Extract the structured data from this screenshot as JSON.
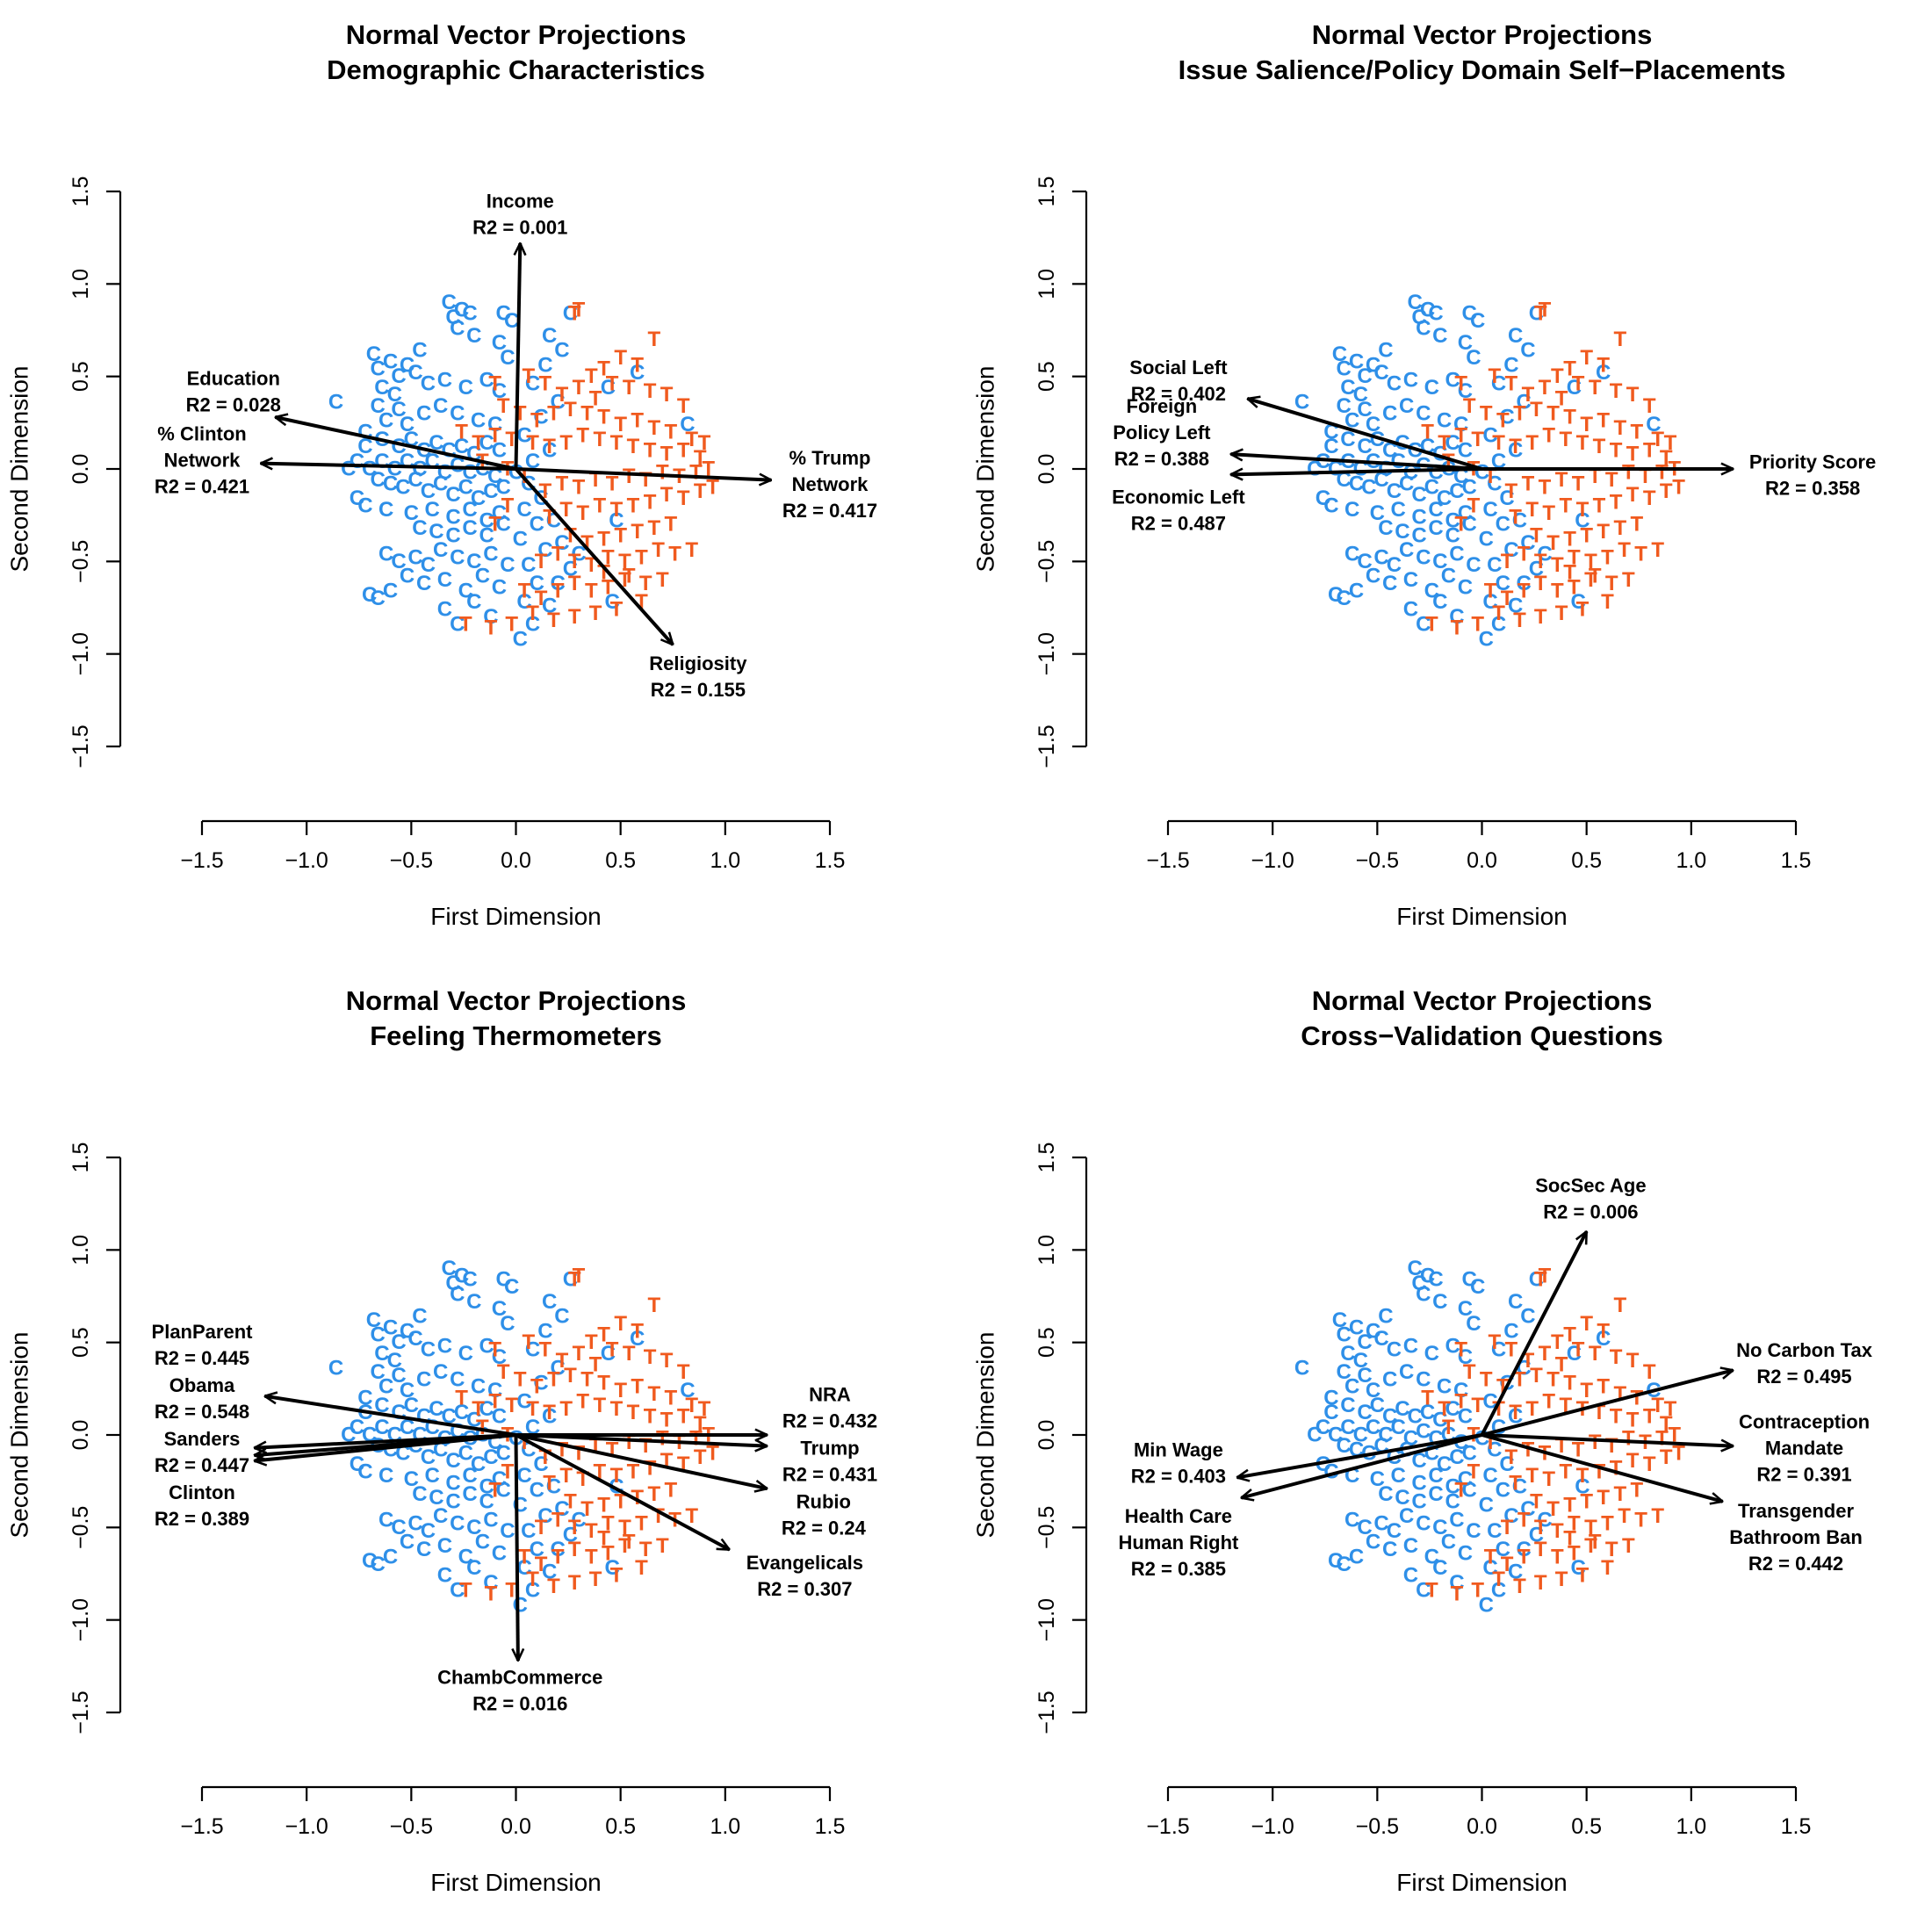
{
  "colors": {
    "clinton": "#2e8fe8",
    "trump": "#f05a1e",
    "arrow": "#000000"
  },
  "chart_data": [
    {
      "type": "scatter",
      "title": "Normal Vector Projections",
      "subtitle": "Demographic Characteristics",
      "xlabel": "First Dimension",
      "ylabel": "Second Dimension",
      "xlim": [
        -1.5,
        1.5
      ],
      "ylim": [
        -1.5,
        1.5
      ],
      "ticks": [
        "−1.5",
        "−1.0",
        "−0.5",
        "0.0",
        "0.5",
        "1.0",
        "1.5"
      ],
      "vectors": [
        {
          "label": [
            "Income",
            "R2 = 0.001"
          ],
          "x": 0.02,
          "y": 1.22,
          "lx": 0.02,
          "ly": 1.38
        },
        {
          "label": [
            "Education",
            "R2 = 0.028"
          ],
          "x": -1.15,
          "y": 0.28,
          "lx": -1.35,
          "ly": 0.42
        },
        {
          "label": [
            "% Clinton",
            "Network",
            "R2 = 0.421"
          ],
          "x": -1.22,
          "y": 0.03,
          "lx": -1.5,
          "ly": 0.05
        },
        {
          "label": [
            "% Trump",
            "Network",
            "R2 = 0.417"
          ],
          "x": 1.22,
          "y": -0.06,
          "lx": 1.5,
          "ly": -0.08
        },
        {
          "label": [
            "Religiosity",
            "R2 = 0.155"
          ],
          "x": 0.75,
          "y": -0.95,
          "lx": 0.87,
          "ly": -1.12
        }
      ]
    },
    {
      "type": "scatter",
      "title": "Normal Vector Projections",
      "subtitle": "Issue Salience/Policy Domain Self−Placements",
      "xlabel": "First Dimension",
      "ylabel": "Second Dimension",
      "xlim": [
        -1.5,
        1.5
      ],
      "ylim": [
        -1.5,
        1.5
      ],
      "ticks": [
        "−1.5",
        "−1.0",
        "−0.5",
        "0.0",
        "0.5",
        "1.0",
        "1.5"
      ],
      "vectors": [
        {
          "label": [
            "Social Left",
            "R2 = 0.402"
          ],
          "x": -1.12,
          "y": 0.38,
          "lx": -1.45,
          "ly": 0.48
        },
        {
          "label": [
            "Foreign",
            "Policy Left",
            "R2 = 0.388"
          ],
          "x": -1.2,
          "y": 0.08,
          "lx": -1.53,
          "ly": 0.2
        },
        {
          "label": [
            "Economic Left",
            "R2 = 0.487"
          ],
          "x": -1.2,
          "y": -0.03,
          "lx": -1.45,
          "ly": -0.22
        },
        {
          "label": [
            "Priority Score",
            "R2 = 0.358"
          ],
          "x": 1.2,
          "y": 0.0,
          "lx": 1.58,
          "ly": -0.03
        }
      ]
    },
    {
      "type": "scatter",
      "title": "Normal Vector Projections",
      "subtitle": "Feeling Thermometers",
      "xlabel": "First Dimension",
      "ylabel": "Second Dimension",
      "xlim": [
        -1.5,
        1.5
      ],
      "ylim": [
        -1.5,
        1.5
      ],
      "ticks": [
        "−1.5",
        "−1.0",
        "−0.5",
        "0.0",
        "0.5",
        "1.0",
        "1.5"
      ],
      "vectors": [
        {
          "label": [
            "PlanParent",
            "R2 = 0.445"
          ],
          "x": -1.2,
          "y": 0.21,
          "lx": -1.5,
          "ly": 0.49
        },
        {
          "label": [
            "Obama",
            "R2 = 0.548"
          ],
          "x": -1.25,
          "y": -0.07,
          "lx": -1.5,
          "ly": 0.2
        },
        {
          "label": [
            "Sanders",
            "R2 = 0.447"
          ],
          "x": -1.25,
          "y": -0.11,
          "lx": -1.5,
          "ly": -0.09
        },
        {
          "label": [
            "Clinton",
            "R2 = 0.389"
          ],
          "x": -1.25,
          "y": -0.14,
          "lx": -1.5,
          "ly": -0.38
        },
        {
          "label": [
            "NRA",
            "R2 = 0.432"
          ],
          "x": 1.2,
          "y": 0.0,
          "lx": 1.5,
          "ly": 0.15
        },
        {
          "label": [
            "Trump",
            "R2 = 0.431"
          ],
          "x": 1.2,
          "y": -0.06,
          "lx": 1.5,
          "ly": -0.14
        },
        {
          "label": [
            "Rubio",
            "R2 = 0.24"
          ],
          "x": 1.2,
          "y": -0.29,
          "lx": 1.47,
          "ly": -0.43
        },
        {
          "label": [
            "Evangelicals",
            "R2 = 0.307"
          ],
          "x": 1.02,
          "y": -0.62,
          "lx": 1.38,
          "ly": -0.76
        },
        {
          "label": [
            "ChambCommerce",
            "R2 = 0.016"
          ],
          "x": 0.01,
          "y": -1.22,
          "lx": 0.02,
          "ly": -1.38
        }
      ]
    },
    {
      "type": "scatter",
      "title": "Normal Vector Projections",
      "subtitle": "Cross−Validation Questions",
      "xlabel": "First Dimension",
      "ylabel": "Second Dimension",
      "xlim": [
        -1.5,
        1.5
      ],
      "ylim": [
        -1.5,
        1.5
      ],
      "ticks": [
        "−1.5",
        "−1.0",
        "−0.5",
        "0.0",
        "0.5",
        "1.0",
        "1.5"
      ],
      "vectors": [
        {
          "label": [
            "SocSec Age",
            "R2 = 0.006"
          ],
          "x": 0.5,
          "y": 1.1,
          "lx": 0.52,
          "ly": 1.28
        },
        {
          "label": [
            "No Carbon Tax",
            "R2 = 0.495"
          ],
          "x": 1.2,
          "y": 0.35,
          "lx": 1.54,
          "ly": 0.39
        },
        {
          "label": [
            "Contraception",
            "Mandate",
            "R2 = 0.391"
          ],
          "x": 1.2,
          "y": -0.06,
          "lx": 1.54,
          "ly": -0.07
        },
        {
          "label": [
            "Transgender",
            "Bathroom Ban",
            "R2 = 0.442"
          ],
          "x": 1.15,
          "y": -0.36,
          "lx": 1.5,
          "ly": -0.55
        },
        {
          "label": [
            "Min Wage",
            "R2 = 0.403"
          ],
          "x": -1.17,
          "y": -0.23,
          "lx": -1.45,
          "ly": -0.15
        },
        {
          "label": [
            "Health Care",
            "Human Right",
            "R2 = 0.385"
          ],
          "x": -1.15,
          "y": -0.34,
          "lx": -1.45,
          "ly": -0.58
        }
      ]
    }
  ],
  "points": {
    "C": [
      [
        -0.32,
        0.9
      ],
      [
        -0.26,
        0.86
      ],
      [
        -0.3,
        0.82
      ],
      [
        -0.22,
        0.84
      ],
      [
        -0.28,
        0.76
      ],
      [
        -0.2,
        0.72
      ],
      [
        -0.06,
        0.84
      ],
      [
        -0.02,
        0.8
      ],
      [
        -0.08,
        0.68
      ],
      [
        -0.04,
        0.6
      ],
      [
        -0.68,
        0.62
      ],
      [
        -0.6,
        0.58
      ],
      [
        -0.46,
        0.64
      ],
      [
        -0.52,
        0.56
      ],
      [
        -0.66,
        0.54
      ],
      [
        -0.56,
        0.5
      ],
      [
        -0.48,
        0.52
      ],
      [
        -0.64,
        0.44
      ],
      [
        -0.58,
        0.4
      ],
      [
        -0.42,
        0.46
      ],
      [
        -0.34,
        0.48
      ],
      [
        -0.24,
        0.44
      ],
      [
        -0.14,
        0.48
      ],
      [
        -0.08,
        0.42
      ],
      [
        -0.86,
        0.36
      ],
      [
        -0.66,
        0.34
      ],
      [
        -0.56,
        0.32
      ],
      [
        -0.62,
        0.26
      ],
      [
        -0.52,
        0.24
      ],
      [
        -0.44,
        0.3
      ],
      [
        -0.36,
        0.34
      ],
      [
        -0.28,
        0.3
      ],
      [
        -0.18,
        0.26
      ],
      [
        -0.1,
        0.24
      ],
      [
        -0.72,
        0.2
      ],
      [
        -0.64,
        0.16
      ],
      [
        -0.56,
        0.12
      ],
      [
        -0.5,
        0.16
      ],
      [
        -0.44,
        0.1
      ],
      [
        -0.38,
        0.14
      ],
      [
        -0.32,
        0.1
      ],
      [
        -0.26,
        0.12
      ],
      [
        -0.2,
        0.08
      ],
      [
        -0.14,
        0.14
      ],
      [
        -0.08,
        0.1
      ],
      [
        -0.76,
        0.04
      ],
      [
        -0.7,
        0.0
      ],
      [
        -0.64,
        0.04
      ],
      [
        -0.58,
        0.0
      ],
      [
        -0.52,
        0.04
      ],
      [
        -0.46,
        0.0
      ],
      [
        -0.4,
        0.04
      ],
      [
        -0.34,
        -0.02
      ],
      [
        -0.28,
        0.02
      ],
      [
        -0.22,
        -0.02
      ],
      [
        -0.16,
        0.0
      ],
      [
        -0.1,
        -0.04
      ],
      [
        -0.8,
        0.0
      ],
      [
        -0.66,
        -0.06
      ],
      [
        -0.6,
        -0.08
      ],
      [
        -0.54,
        -0.1
      ],
      [
        -0.48,
        -0.06
      ],
      [
        -0.42,
        -0.12
      ],
      [
        -0.36,
        -0.08
      ],
      [
        -0.3,
        -0.14
      ],
      [
        -0.24,
        -0.1
      ],
      [
        -0.18,
        -0.16
      ],
      [
        -0.12,
        -0.12
      ],
      [
        -0.06,
        -0.1
      ],
      [
        -0.72,
        -0.2
      ],
      [
        -0.62,
        -0.22
      ],
      [
        -0.5,
        -0.24
      ],
      [
        -0.4,
        -0.22
      ],
      [
        -0.3,
        -0.26
      ],
      [
        -0.22,
        -0.22
      ],
      [
        -0.14,
        -0.28
      ],
      [
        -0.08,
        -0.24
      ],
      [
        -0.46,
        -0.32
      ],
      [
        -0.38,
        -0.34
      ],
      [
        -0.3,
        -0.36
      ],
      [
        -0.22,
        -0.32
      ],
      [
        -0.14,
        -0.36
      ],
      [
        -0.06,
        -0.3
      ],
      [
        -0.62,
        -0.46
      ],
      [
        -0.56,
        -0.5
      ],
      [
        -0.48,
        -0.48
      ],
      [
        -0.42,
        -0.52
      ],
      [
        -0.36,
        -0.44
      ],
      [
        -0.28,
        -0.48
      ],
      [
        -0.2,
        -0.5
      ],
      [
        -0.12,
        -0.46
      ],
      [
        -0.04,
        -0.52
      ],
      [
        -0.66,
        -0.7
      ],
      [
        -0.6,
        -0.66
      ],
      [
        -0.52,
        -0.58
      ],
      [
        -0.44,
        -0.62
      ],
      [
        -0.34,
        -0.6
      ],
      [
        -0.24,
        -0.66
      ],
      [
        -0.16,
        -0.58
      ],
      [
        -0.08,
        -0.64
      ],
      [
        -0.34,
        -0.76
      ],
      [
        -0.28,
        -0.84
      ],
      [
        -0.2,
        -0.72
      ],
      [
        -0.12,
        -0.8
      ],
      [
        0.04,
        -0.72
      ],
      [
        0.08,
        -0.84
      ],
      [
        0.02,
        -0.92
      ],
      [
        0.16,
        -0.74
      ],
      [
        0.1,
        -0.62
      ],
      [
        0.2,
        -0.62
      ],
      [
        0.26,
        -0.54
      ],
      [
        0.06,
        -0.52
      ],
      [
        0.14,
        -0.44
      ],
      [
        0.22,
        -0.4
      ],
      [
        0.3,
        -0.46
      ],
      [
        0.02,
        -0.38
      ],
      [
        0.1,
        -0.3
      ],
      [
        0.18,
        -0.28
      ],
      [
        0.04,
        -0.22
      ],
      [
        0.12,
        -0.16
      ],
      [
        0.06,
        -0.08
      ],
      [
        0.0,
        -0.02
      ],
      [
        0.08,
        0.04
      ],
      [
        0.16,
        0.1
      ],
      [
        0.04,
        0.18
      ],
      [
        0.12,
        0.28
      ],
      [
        0.2,
        0.36
      ],
      [
        0.08,
        0.46
      ],
      [
        0.14,
        0.56
      ],
      [
        0.22,
        0.64
      ],
      [
        0.16,
        0.72
      ],
      [
        0.26,
        0.84
      ],
      [
        0.48,
        -0.28
      ],
      [
        0.46,
        -0.72
      ],
      [
        0.82,
        0.24
      ],
      [
        0.58,
        0.52
      ],
      [
        0.44,
        0.44
      ],
      [
        -0.72,
        0.12
      ],
      [
        -0.7,
        -0.68
      ],
      [
        -0.76,
        -0.16
      ]
    ],
    "T": [
      [
        0.28,
        0.84
      ],
      [
        0.3,
        0.86
      ],
      [
        0.66,
        0.7
      ],
      [
        0.5,
        0.6
      ],
      [
        0.58,
        0.56
      ],
      [
        0.42,
        0.54
      ],
      [
        0.36,
        0.5
      ],
      [
        0.46,
        0.46
      ],
      [
        0.54,
        0.44
      ],
      [
        0.64,
        0.42
      ],
      [
        0.72,
        0.4
      ],
      [
        0.8,
        0.34
      ],
      [
        0.3,
        0.44
      ],
      [
        0.38,
        0.38
      ],
      [
        0.22,
        0.4
      ],
      [
        0.14,
        0.46
      ],
      [
        0.06,
        0.5
      ],
      [
        -0.1,
        0.46
      ],
      [
        -0.06,
        0.34
      ],
      [
        0.02,
        0.3
      ],
      [
        0.1,
        0.26
      ],
      [
        0.18,
        0.3
      ],
      [
        0.26,
        0.32
      ],
      [
        0.34,
        0.3
      ],
      [
        0.42,
        0.28
      ],
      [
        0.5,
        0.24
      ],
      [
        0.58,
        0.26
      ],
      [
        0.66,
        0.22
      ],
      [
        0.74,
        0.2
      ],
      [
        0.84,
        0.16
      ],
      [
        0.9,
        0.14
      ],
      [
        0.88,
        0.06
      ],
      [
        0.8,
        0.1
      ],
      [
        0.72,
        0.08
      ],
      [
        0.64,
        0.1
      ],
      [
        0.56,
        0.12
      ],
      [
        0.48,
        0.14
      ],
      [
        0.4,
        0.16
      ],
      [
        0.32,
        0.18
      ],
      [
        0.24,
        0.14
      ],
      [
        0.16,
        0.12
      ],
      [
        0.08,
        0.14
      ],
      [
        -0.02,
        0.16
      ],
      [
        -0.1,
        0.18
      ],
      [
        -0.18,
        0.14
      ],
      [
        -0.26,
        0.2
      ],
      [
        0.92,
        0.0
      ],
      [
        0.86,
        -0.02
      ],
      [
        0.78,
        -0.04
      ],
      [
        0.7,
        -0.02
      ],
      [
        0.62,
        -0.06
      ],
      [
        0.54,
        -0.04
      ],
      [
        0.46,
        -0.08
      ],
      [
        0.38,
        -0.06
      ],
      [
        0.3,
        -0.1
      ],
      [
        0.22,
        -0.08
      ],
      [
        0.14,
        -0.12
      ],
      [
        0.94,
        -0.1
      ],
      [
        0.88,
        -0.12
      ],
      [
        0.8,
        -0.16
      ],
      [
        0.72,
        -0.14
      ],
      [
        0.64,
        -0.18
      ],
      [
        0.56,
        -0.2
      ],
      [
        0.48,
        -0.22
      ],
      [
        0.4,
        -0.2
      ],
      [
        0.32,
        -0.24
      ],
      [
        0.24,
        -0.22
      ],
      [
        0.16,
        -0.26
      ],
      [
        0.74,
        -0.3
      ],
      [
        0.66,
        -0.32
      ],
      [
        0.58,
        -0.34
      ],
      [
        0.5,
        -0.36
      ],
      [
        0.42,
        -0.38
      ],
      [
        0.34,
        -0.4
      ],
      [
        0.26,
        -0.36
      ],
      [
        0.84,
        -0.44
      ],
      [
        0.76,
        -0.46
      ],
      [
        0.68,
        -0.44
      ],
      [
        0.6,
        -0.48
      ],
      [
        0.52,
        -0.5
      ],
      [
        0.44,
        -0.48
      ],
      [
        0.36,
        -0.52
      ],
      [
        0.28,
        -0.5
      ],
      [
        0.2,
        -0.46
      ],
      [
        0.12,
        -0.5
      ],
      [
        0.7,
        -0.6
      ],
      [
        0.62,
        -0.62
      ],
      [
        0.52,
        -0.6
      ],
      [
        0.44,
        -0.64
      ],
      [
        0.36,
        -0.66
      ],
      [
        0.28,
        -0.62
      ],
      [
        0.2,
        -0.66
      ],
      [
        0.12,
        -0.7
      ],
      [
        0.04,
        -0.66
      ],
      [
        0.6,
        -0.72
      ],
      [
        0.48,
        -0.76
      ],
      [
        0.38,
        -0.78
      ],
      [
        0.28,
        -0.8
      ],
      [
        0.18,
        -0.82
      ],
      [
        0.08,
        -0.78
      ],
      [
        -0.02,
        -0.84
      ],
      [
        -0.12,
        -0.86
      ],
      [
        -0.24,
        -0.84
      ],
      [
        0.54,
        -0.58
      ],
      [
        0.42,
        -0.56
      ],
      [
        -0.04,
        -0.2
      ],
      [
        -0.1,
        -0.3
      ],
      [
        -0.16,
        0.04
      ],
      [
        -0.04,
        0.0
      ],
      [
        0.04,
        -0.04
      ]
    ]
  }
}
